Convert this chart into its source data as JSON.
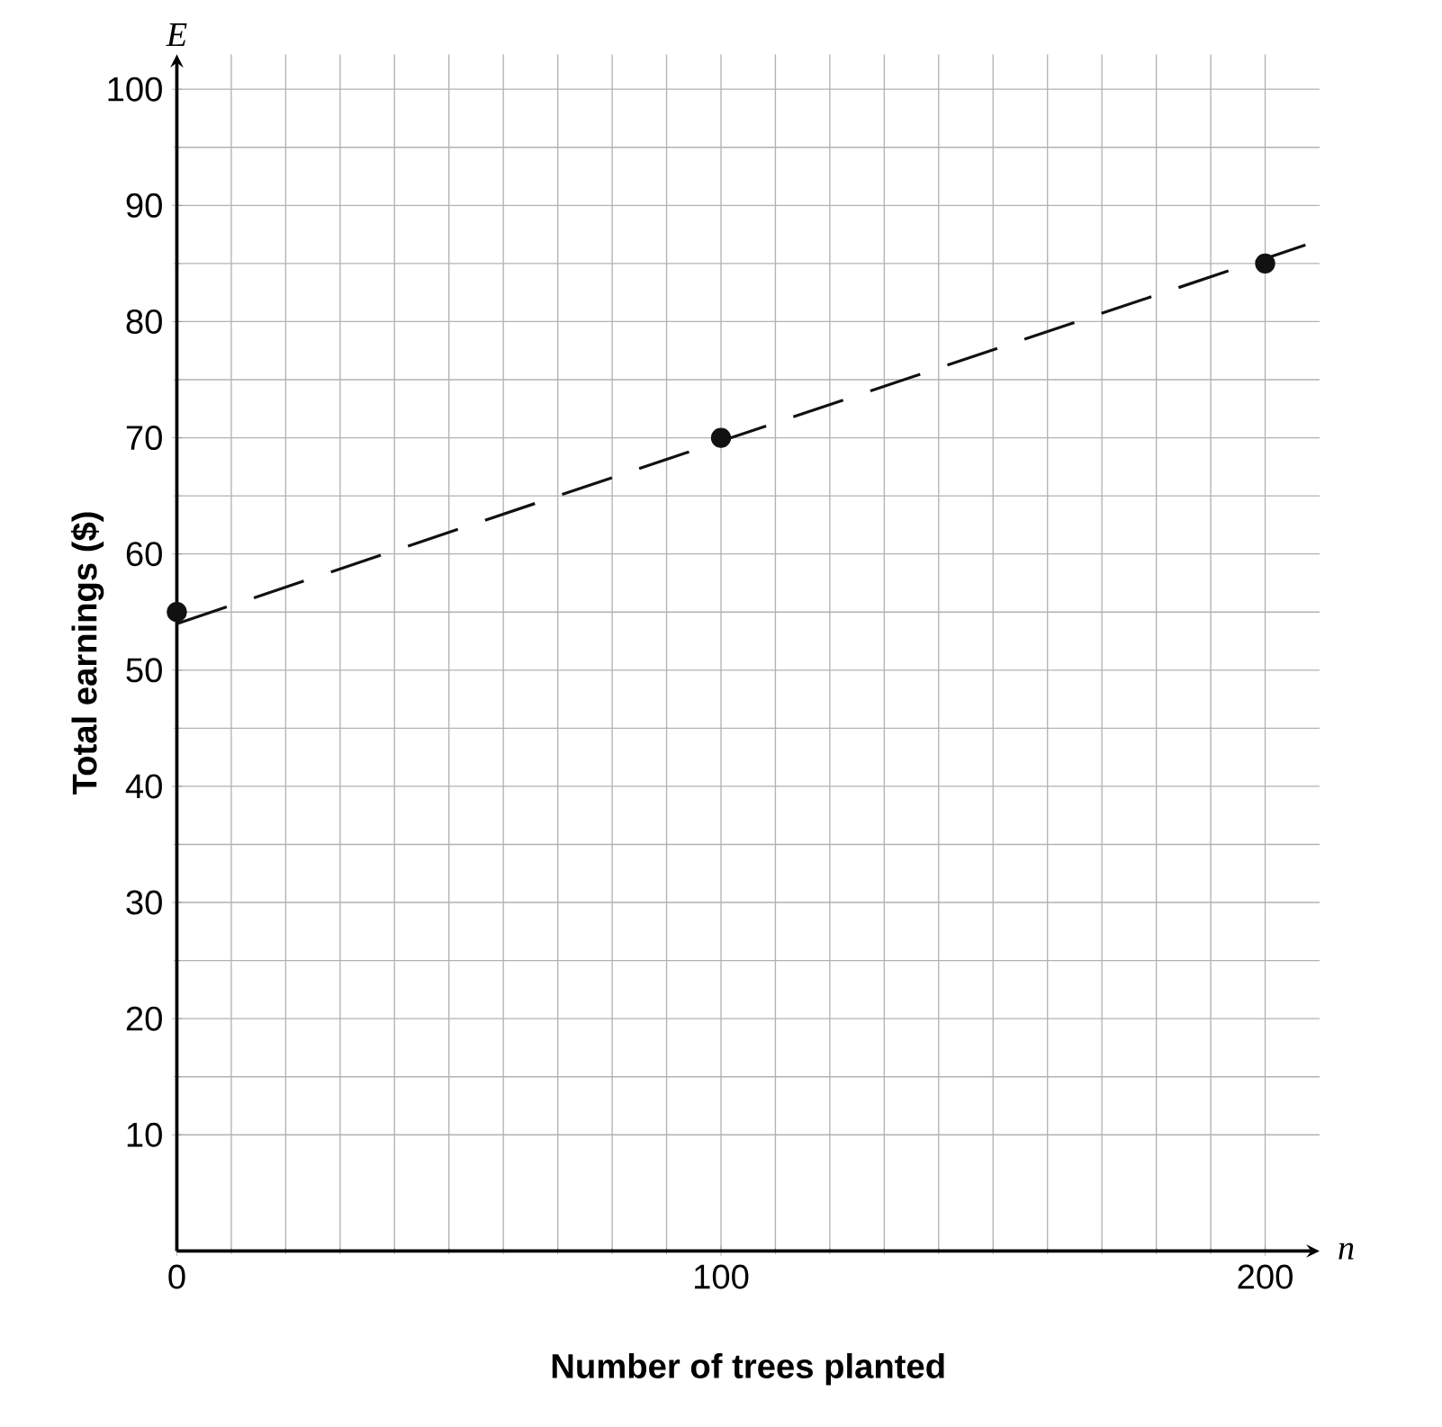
{
  "chart_data": {
    "type": "line",
    "xlabel": "Number of trees planted",
    "ylabel": "Total earnings ($)",
    "annotations": [
      "E",
      "n"
    ],
    "xlim": [
      0,
      210
    ],
    "ylim": [
      0,
      103
    ],
    "xticks": [
      0,
      100,
      200
    ],
    "yticks": [
      10,
      20,
      30,
      40,
      50,
      60,
      70,
      80,
      90,
      100
    ],
    "grid": true,
    "series": [
      {
        "type": "scatter",
        "color": "#111111",
        "marker": "circle",
        "x": [
          0,
          100,
          200
        ],
        "values": [
          55,
          70,
          85
        ]
      },
      {
        "color": "#111111",
        "line_style": "dashed",
        "marker": "none",
        "x": [
          0,
          210
        ],
        "values": [
          54,
          87
        ]
      }
    ]
  }
}
